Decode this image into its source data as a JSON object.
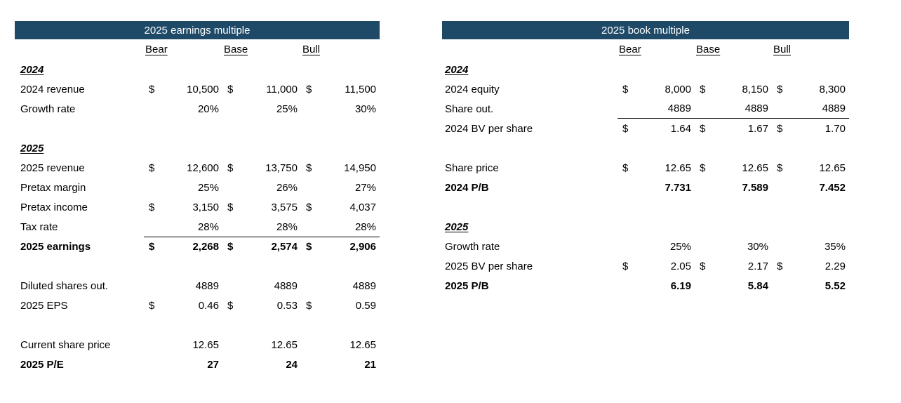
{
  "accent": {
    "title_bar_bg": "#1e4a68",
    "title_bar_text": "#ffffff",
    "body_text": "#000000"
  },
  "tables": [
    {
      "id": "earnings-multiple",
      "title": "2025 earnings multiple",
      "columns": [
        "Bear",
        "Base",
        "Bull"
      ],
      "rows": [
        {
          "type": "section",
          "label": "2024"
        },
        {
          "type": "data",
          "label": "2024 revenue",
          "dollar": true,
          "bold": false,
          "line": null,
          "values": [
            "10,500",
            "11,000",
            "11,500"
          ]
        },
        {
          "type": "data",
          "label": "Growth rate",
          "dollar": false,
          "bold": false,
          "line": null,
          "values": [
            "20%",
            "25%",
            "30%"
          ]
        },
        {
          "type": "blank"
        },
        {
          "type": "section",
          "label": "2025"
        },
        {
          "type": "data",
          "label": "2025 revenue",
          "dollar": true,
          "bold": false,
          "line": null,
          "values": [
            "12,600",
            "13,750",
            "14,950"
          ]
        },
        {
          "type": "data",
          "label": "Pretax margin",
          "dollar": false,
          "bold": false,
          "line": null,
          "values": [
            "25%",
            "26%",
            "27%"
          ]
        },
        {
          "type": "data",
          "label": "Pretax income",
          "dollar": true,
          "bold": false,
          "line": null,
          "values": [
            "3,150",
            "3,575",
            "4,037"
          ]
        },
        {
          "type": "data",
          "label": "Tax rate",
          "dollar": false,
          "bold": false,
          "line": null,
          "values": [
            "28%",
            "28%",
            "28%"
          ]
        },
        {
          "type": "data",
          "label": "2025 earnings",
          "dollar": true,
          "bold": true,
          "line": "top",
          "values": [
            "2,268",
            "2,574",
            "2,906"
          ]
        },
        {
          "type": "blank"
        },
        {
          "type": "data",
          "label": "Diluted shares out.",
          "dollar": false,
          "bold": false,
          "line": null,
          "values": [
            "4889",
            "4889",
            "4889"
          ]
        },
        {
          "type": "data",
          "label": "2025 EPS",
          "dollar": true,
          "bold": false,
          "line": null,
          "values": [
            "0.46",
            "0.53",
            "0.59"
          ]
        },
        {
          "type": "blank"
        },
        {
          "type": "data",
          "label": "Current share price",
          "dollar": false,
          "bold": false,
          "line": null,
          "values": [
            "12.65",
            "12.65",
            "12.65"
          ]
        },
        {
          "type": "data",
          "label": "2025 P/E",
          "dollar": false,
          "bold": true,
          "line": null,
          "values": [
            "27",
            "24",
            "21"
          ]
        }
      ]
    },
    {
      "id": "book-multiple",
      "title": "2025 book multiple",
      "columns": [
        "Bear",
        "Base",
        "Bull"
      ],
      "rows": [
        {
          "type": "section",
          "label": "2024"
        },
        {
          "type": "data",
          "label": "2024 equity",
          "dollar": true,
          "bold": false,
          "line": null,
          "values": [
            "8,000",
            "8,150",
            "8,300"
          ]
        },
        {
          "type": "data",
          "label": "Share out.",
          "dollar": false,
          "bold": false,
          "line": "bottom",
          "values": [
            "4889",
            "4889",
            "4889"
          ]
        },
        {
          "type": "data",
          "label": "2024 BV per share",
          "dollar": true,
          "bold": false,
          "line": null,
          "values": [
            "1.64",
            "1.67",
            "1.70"
          ]
        },
        {
          "type": "blank"
        },
        {
          "type": "data",
          "label": "Share price",
          "dollar": true,
          "bold": false,
          "line": null,
          "values": [
            "12.65",
            "12.65",
            "12.65"
          ]
        },
        {
          "type": "data",
          "label": "2024 P/B",
          "dollar": false,
          "bold": true,
          "line": null,
          "values": [
            "7.731",
            "7.589",
            "7.452"
          ]
        },
        {
          "type": "blank"
        },
        {
          "type": "section",
          "label": "2025"
        },
        {
          "type": "data",
          "label": "Growth rate",
          "dollar": false,
          "bold": false,
          "line": null,
          "values": [
            "25%",
            "30%",
            "35%"
          ]
        },
        {
          "type": "data",
          "label": "2025 BV per share",
          "dollar": true,
          "bold": false,
          "line": null,
          "values": [
            "2.05",
            "2.17",
            "2.29"
          ]
        },
        {
          "type": "data",
          "label": "2025 P/B",
          "dollar": false,
          "bold": true,
          "line": null,
          "values": [
            "6.19",
            "5.84",
            "5.52"
          ]
        }
      ]
    }
  ]
}
